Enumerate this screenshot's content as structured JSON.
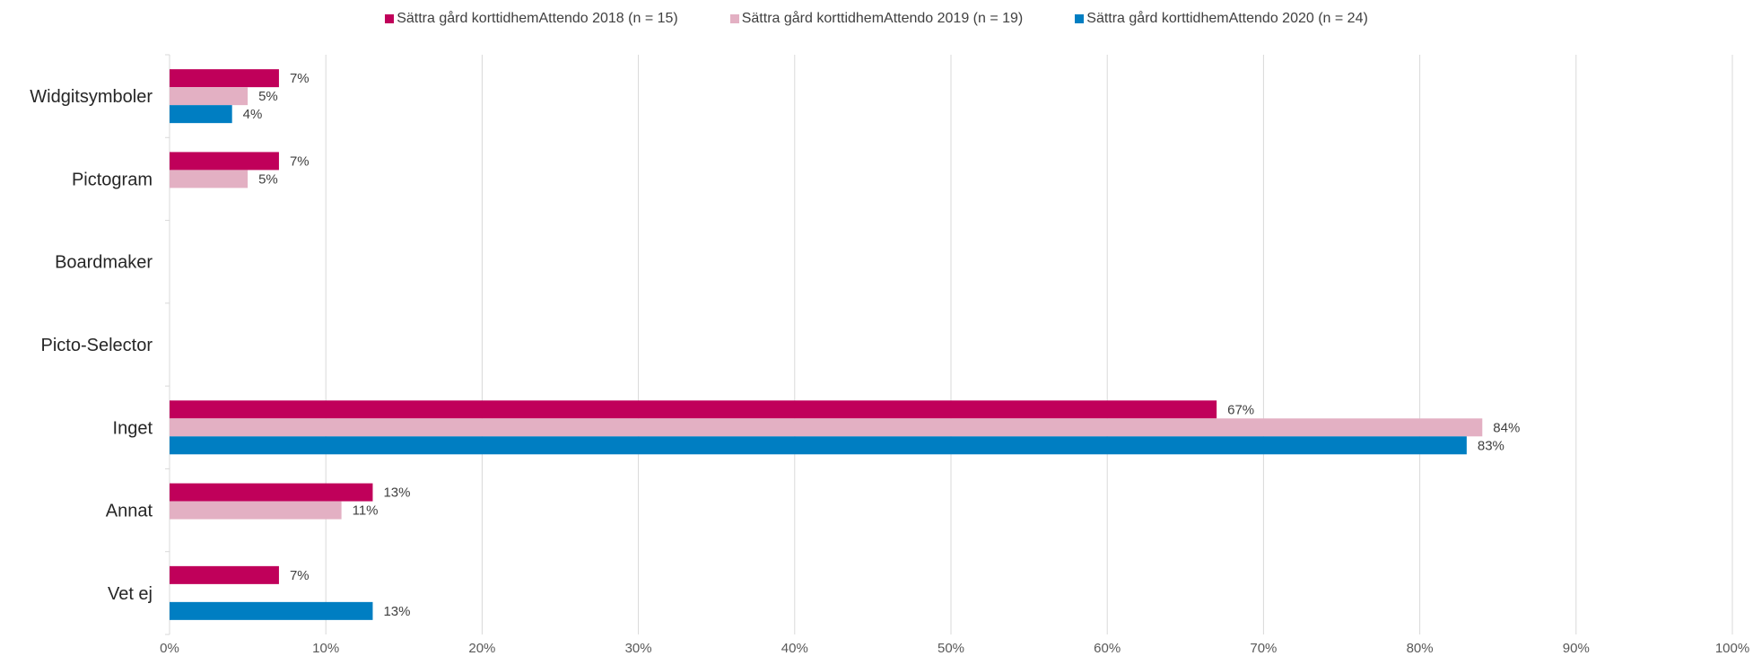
{
  "chart_data": {
    "type": "bar",
    "orientation": "horizontal",
    "categories": [
      "Widgitsymboler",
      "Pictogram",
      "Boardmaker",
      "Picto-Selector",
      "Inget",
      "Annat",
      "Vet ej"
    ],
    "series": [
      {
        "name": "Sättra gård korttidhemAttendo 2018 (n = 15)",
        "color": "#c0005a",
        "values": [
          7,
          7,
          null,
          null,
          67,
          13,
          7
        ]
      },
      {
        "name": "Sättra gård korttidhemAttendo 2019 (n = 19)",
        "color": "#e3b0c3",
        "values": [
          5,
          5,
          null,
          null,
          84,
          11,
          null
        ]
      },
      {
        "name": "Sättra gård korttidhemAttendo 2020 (n = 24)",
        "color": "#007ec2",
        "values": [
          4,
          null,
          null,
          null,
          83,
          null,
          13
        ]
      }
    ],
    "x_ticks": [
      "0%",
      "10%",
      "20%",
      "30%",
      "40%",
      "50%",
      "60%",
      "70%",
      "80%",
      "90%",
      "100%"
    ],
    "xlim": [
      0,
      100
    ],
    "unit": "%",
    "grid": true,
    "legend": "top"
  }
}
